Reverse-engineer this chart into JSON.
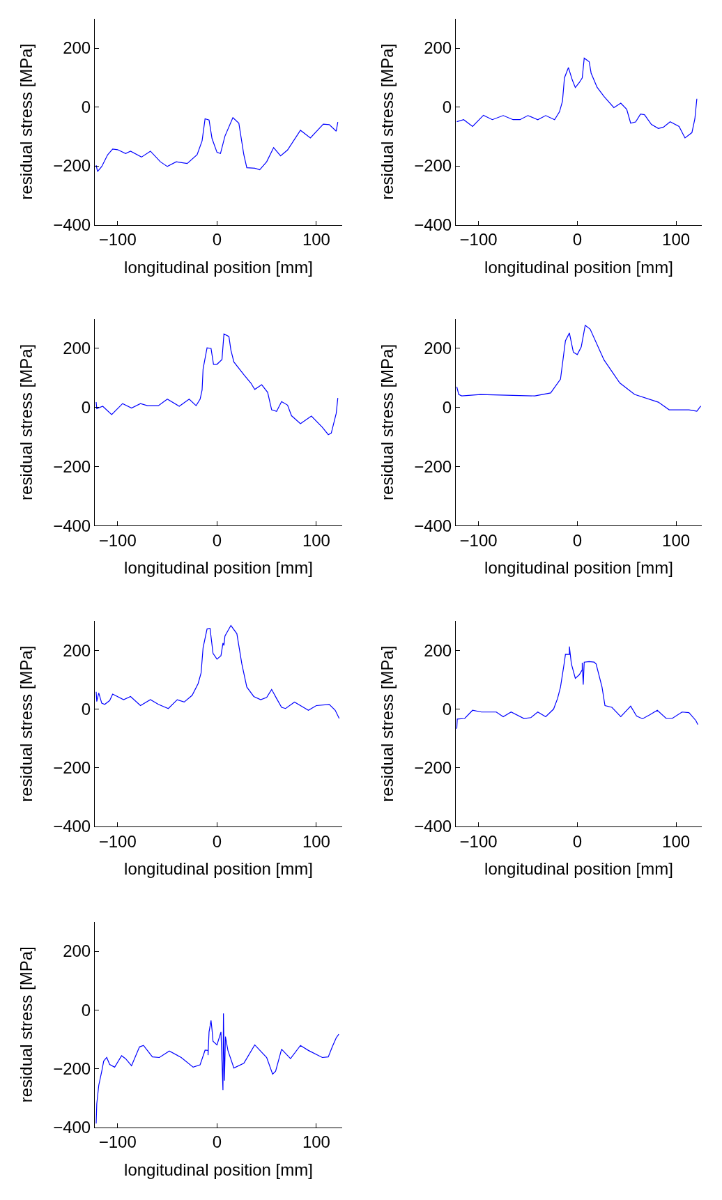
{
  "chart_data": [
    {
      "type": "line",
      "xlabel": "longitudinal position [mm]",
      "ylabel": "residual stress [MPa]",
      "xlim": [
        -123,
        126
      ],
      "ylim": [
        -400,
        300
      ],
      "xticks": [
        -100,
        0,
        100
      ],
      "yticks": [
        -400,
        -200,
        0,
        200
      ],
      "grid": false,
      "series": [
        {
          "color": "#0000ff",
          "x": [
            -121.6,
            -120.2,
            -116,
            -110,
            -105,
            -100,
            -92,
            -87,
            -76,
            -67,
            -57,
            -50,
            -41,
            -30,
            -20,
            -15,
            -12,
            -8,
            -5,
            0,
            3.5,
            8,
            16,
            22,
            27,
            30,
            38,
            43,
            50,
            57,
            64,
            71,
            84,
            94,
            107,
            113,
            120,
            121.6
          ],
          "values": [
            -198,
            -219,
            -202,
            -162,
            -143,
            -145,
            -158,
            -150,
            -170,
            -150,
            -186,
            -202,
            -186,
            -192,
            -162,
            -115,
            -40,
            -44,
            -107,
            -154,
            -158,
            -99,
            -36,
            -55,
            -162,
            -206,
            -208,
            -213,
            -186,
            -138,
            -166,
            -146,
            -79,
            -105,
            -58,
            -60,
            -82,
            -51
          ]
        }
      ]
    },
    {
      "type": "line",
      "xlabel": "longitudinal position [mm]",
      "ylabel": "residual stress [MPa]",
      "xlim": [
        -123,
        126
      ],
      "ylim": [
        -400,
        300
      ],
      "xticks": [
        -100,
        0,
        100
      ],
      "yticks": [
        -400,
        -200,
        0,
        200
      ],
      "grid": false,
      "series": [
        {
          "color": "#0000ff",
          "x": [
            -122,
            -115,
            -106,
            -95,
            -86,
            -75,
            -65,
            -58,
            -50,
            -40,
            -32,
            -23,
            -18,
            -15,
            -13,
            -9,
            -5,
            -2,
            2,
            5,
            7,
            12,
            14,
            20,
            27,
            37,
            44,
            50,
            54,
            59,
            64,
            68,
            75,
            82,
            87,
            94,
            103,
            109,
            116,
            119,
            121
          ],
          "values": [
            -50,
            -43,
            -66,
            -28,
            -43,
            -29,
            -43,
            -43,
            -29,
            -43,
            -29,
            -43,
            -16,
            20,
            99,
            134,
            91,
            66,
            83,
            99,
            166,
            154,
            115,
            67,
            36,
            -2,
            13,
            -8,
            -55,
            -51,
            -24,
            -26,
            -59,
            -73,
            -69,
            -50,
            -66,
            -105,
            -87,
            -40,
            28
          ]
        }
      ]
    },
    {
      "type": "line",
      "xlabel": "longitudinal position [mm]",
      "ylabel": "residual stress [MPa]",
      "xlim": [
        -123,
        126
      ],
      "ylim": [
        -400,
        300
      ],
      "xticks": [
        -100,
        0,
        100
      ],
      "yticks": [
        -400,
        -200,
        0,
        200
      ],
      "grid": false,
      "series": [
        {
          "color": "#0000ff",
          "x": [
            -121.6,
            -121,
            -115,
            -106,
            -95,
            -86,
            -77,
            -70,
            -59,
            -50,
            -38,
            -28,
            -21,
            -17,
            -15,
            -14,
            -10,
            -6,
            -3.5,
            0,
            5,
            7,
            12,
            14,
            17,
            27,
            34,
            38,
            45,
            51,
            55,
            60,
            65,
            71,
            75,
            84,
            95,
            106,
            112,
            115,
            120,
            121.6
          ],
          "values": [
            18,
            -4,
            4,
            -24,
            13,
            -2,
            13,
            6,
            6,
            28,
            4,
            28,
            6,
            28,
            59,
            130,
            202,
            200,
            146,
            146,
            162,
            249,
            240,
            194,
            154,
            111,
            83,
            61,
            77,
            51,
            -8,
            -13,
            20,
            8,
            -28,
            -55,
            -29,
            -67,
            -92,
            -87,
            -20,
            32
          ]
        }
      ]
    },
    {
      "type": "line",
      "xlabel": "longitudinal position [mm]",
      "ylabel": "residual stress [MPa]",
      "xlim": [
        -123,
        126
      ],
      "ylim": [
        -400,
        300
      ],
      "xticks": [
        -100,
        0,
        100
      ],
      "yticks": [
        -400,
        -200,
        0,
        200
      ],
      "grid": false,
      "series": [
        {
          "color": "#0000ff",
          "x": [
            -122,
            -120,
            -117,
            -98,
            -43,
            -27,
            -17,
            -12,
            -8,
            -4,
            0,
            4,
            8,
            13,
            27,
            43,
            58,
            82,
            93,
            113,
            121,
            125
          ],
          "values": [
            70,
            44,
            39,
            44,
            39,
            49,
            96,
            226,
            252,
            187,
            179,
            205,
            278,
            265,
            161,
            83,
            44,
            18,
            -8,
            -8,
            -13,
            5
          ]
        }
      ]
    },
    {
      "type": "line",
      "xlabel": "longitudinal position [mm]",
      "ylabel": "residual stress [MPa]",
      "xlim": [
        -123,
        126
      ],
      "ylim": [
        -400,
        300
      ],
      "xticks": [
        -100,
        0,
        100
      ],
      "yticks": [
        -400,
        -200,
        0,
        200
      ],
      "grid": false,
      "series": [
        {
          "color": "#0000ff",
          "x": [
            -121.6,
            -121,
            -119,
            -116,
            -113,
            -108,
            -105,
            -94,
            -87,
            -77,
            -67,
            -59,
            -49,
            -40,
            -33,
            -25,
            -19,
            -16,
            -14,
            -10,
            -7,
            -4,
            0,
            4,
            6,
            7,
            8,
            14,
            20,
            25,
            30,
            37,
            44,
            50,
            55,
            60,
            65,
            69,
            78,
            92,
            100,
            113,
            119,
            123
          ],
          "values": [
            59,
            26,
            55,
            20,
            16,
            29,
            51,
            32,
            43,
            12,
            32,
            16,
            2,
            32,
            24,
            47,
            87,
            123,
            209,
            273,
            275,
            190,
            170,
            182,
            225,
            217,
            249,
            285,
            257,
            154,
            75,
            43,
            32,
            40,
            67,
            36,
            6,
            2,
            24,
            -4,
            12,
            16,
            -4,
            -32
          ]
        }
      ]
    },
    {
      "type": "line",
      "xlabel": "longitudinal position [mm]",
      "ylabel": "residual stress [MPa]",
      "xlim": [
        -123,
        126
      ],
      "ylim": [
        -400,
        300
      ],
      "xticks": [
        -100,
        0,
        100
      ],
      "yticks": [
        -400,
        -200,
        0,
        200
      ],
      "grid": false,
      "series": [
        {
          "color": "#0000ff",
          "x": [
            -122,
            -121.5,
            -114,
            -106,
            -97,
            -82,
            -75,
            -67,
            -54,
            -47,
            -40,
            -32,
            -24,
            -20,
            -17,
            -13,
            -12,
            -8,
            -8,
            -6,
            -2,
            2,
            5,
            5,
            6,
            7,
            12,
            17,
            19,
            25,
            28,
            35,
            44,
            54,
            60,
            66,
            73,
            81,
            90,
            96,
            106,
            113,
            120,
            122
          ],
          "values": [
            -67,
            -34,
            -32,
            -4,
            -10,
            -10,
            -26,
            -10,
            -32,
            -29,
            -10,
            -26,
            0,
            36,
            75,
            162,
            187,
            186,
            213,
            154,
            105,
            117,
            134,
            158,
            83,
            160,
            162,
            160,
            154,
            75,
            12,
            6,
            -26,
            10,
            -24,
            -33,
            -20,
            -4,
            -32,
            -32,
            -10,
            -12,
            -39,
            -53
          ]
        }
      ]
    },
    {
      "type": "line",
      "xlabel": "longitudinal position [mm]",
      "ylabel": "residual stress [MPa]",
      "xlim": [
        -123,
        126
      ],
      "ylim": [
        -400,
        300
      ],
      "xticks": [
        -100,
        0,
        100
      ],
      "yticks": [
        -400,
        -200,
        0,
        200
      ],
      "grid": false,
      "series": [
        {
          "color": "#0000ff",
          "x": [
            -121.6,
            -121,
            -119,
            -116,
            -114,
            -111,
            -108,
            -103,
            -96,
            -92,
            -86,
            -78,
            -74,
            -65,
            -58,
            -48,
            -36,
            -24,
            -17,
            -12,
            -9,
            -9,
            -8,
            -6,
            -5,
            -4,
            0,
            4,
            6,
            6.5,
            7.5,
            8.5,
            11,
            17,
            27,
            38,
            50,
            56,
            59,
            65,
            74,
            84,
            92,
            106,
            112,
            116,
            120,
            122.6
          ],
          "values": [
            -387,
            -320,
            -257,
            -209,
            -174,
            -162,
            -186,
            -195,
            -156,
            -166,
            -190,
            -126,
            -121,
            -160,
            -162,
            -140,
            -162,
            -195,
            -187,
            -137,
            -138,
            -154,
            -75,
            -36,
            -67,
            -107,
            -119,
            -75,
            -273,
            -12,
            -241,
            -91,
            -138,
            -198,
            -182,
            -119,
            -162,
            -219,
            -209,
            -134,
            -166,
            -121,
            -138,
            -162,
            -160,
            -126,
            -95,
            -83
          ]
        }
      ]
    }
  ]
}
